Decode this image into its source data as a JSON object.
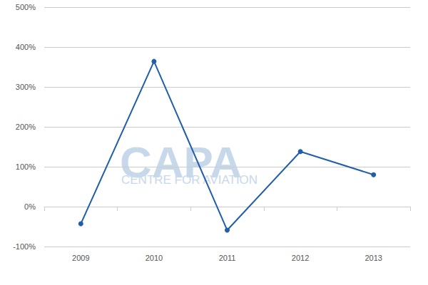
{
  "chart_data": {
    "type": "line",
    "categories": [
      "2009",
      "2010",
      "2011",
      "2012",
      "2013"
    ],
    "values": [
      -43,
      364,
      -59,
      138,
      80
    ],
    "color": "#1f5ea8",
    "marker": "circle",
    "ylim": [
      -100,
      500
    ],
    "yticks": [
      {
        "value": -100,
        "label": "-100%"
      },
      {
        "value": 0,
        "label": "0%"
      },
      {
        "value": 100,
        "label": "100%"
      },
      {
        "value": 200,
        "label": "200%"
      },
      {
        "value": 300,
        "label": "300%"
      },
      {
        "value": 400,
        "label": "400%"
      },
      {
        "value": 500,
        "label": "500%"
      }
    ],
    "grid": true,
    "annotations": [
      "CAPA",
      "CENTRE FOR AVIATION"
    ]
  }
}
